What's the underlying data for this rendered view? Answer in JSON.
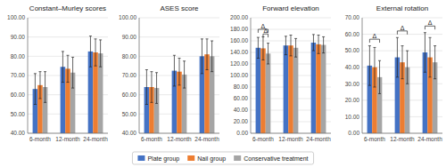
{
  "chart_data": [
    {
      "type": "bar",
      "title": "Constant–Murley scores",
      "categories": [
        "6-month",
        "12-month",
        "24-month"
      ],
      "series": [
        {
          "name": "Plate group",
          "color": "#4472C4",
          "values": [
            63,
            74.5,
            82.5
          ],
          "errors": [
            8,
            8,
            8
          ]
        },
        {
          "name": "Nail group",
          "color": "#ED7D31",
          "values": [
            65,
            73.5,
            82.0
          ],
          "errors": [
            7,
            7,
            7
          ]
        },
        {
          "name": "Conservative treatment",
          "color": "#A5A5A5",
          "values": [
            64,
            71.5,
            81.5
          ],
          "errors": [
            8,
            8,
            7
          ]
        }
      ],
      "ylim": [
        40,
        100
      ],
      "yticks": [
        {
          "value": 40,
          "label": "40.00"
        },
        {
          "value": 50,
          "label": "50.00"
        },
        {
          "value": 60,
          "label": "60.00"
        },
        {
          "value": 70,
          "label": "70.00"
        },
        {
          "value": 80,
          "label": "80.00"
        },
        {
          "value": 90,
          "label": "90.00"
        },
        {
          "value": 100,
          "label": "100.00"
        }
      ],
      "grid": true,
      "legend": "bottom",
      "annotations": []
    },
    {
      "type": "bar",
      "title": "ASES score",
      "categories": [
        "6-month",
        "12-month",
        "24-month"
      ],
      "series": [
        {
          "name": "Plate group",
          "color": "#4472C4",
          "values": [
            64,
            72.5,
            80.0
          ],
          "errors": [
            9,
            8,
            9
          ]
        },
        {
          "name": "Nail group",
          "color": "#ED7D31",
          "values": [
            64,
            72.0,
            81.0
          ],
          "errors": [
            8,
            7,
            8
          ]
        },
        {
          "name": "Conservative treatment",
          "color": "#A5A5A5",
          "values": [
            63.5,
            70.5,
            80.0
          ],
          "errors": [
            8,
            7,
            8
          ]
        }
      ],
      "ylim": [
        40,
        100
      ],
      "yticks": [
        {
          "value": 40,
          "label": "40.00"
        },
        {
          "value": 50,
          "label": "50.00"
        },
        {
          "value": 60,
          "label": "60.00"
        },
        {
          "value": 70,
          "label": "70.00"
        },
        {
          "value": 80,
          "label": "80.00"
        },
        {
          "value": 90,
          "label": "90.00"
        },
        {
          "value": 100,
          "label": "100.00"
        }
      ],
      "grid": true,
      "annotations": []
    },
    {
      "type": "bar",
      "title": "Forward elevation",
      "categories": [
        "6-month",
        "12-month",
        "24-month"
      ],
      "series": [
        {
          "name": "Plate group",
          "color": "#4472C4",
          "values": [
            148,
            152,
            157
          ],
          "errors": [
            18,
            16,
            14
          ]
        },
        {
          "name": "Nail group",
          "color": "#ED7D31",
          "values": [
            147,
            152,
            154
          ],
          "errors": [
            20,
            18,
            16
          ]
        },
        {
          "name": "Conservative treatment",
          "color": "#A5A5A5",
          "values": [
            138,
            148,
            153
          ],
          "errors": [
            18,
            16,
            14
          ]
        }
      ],
      "ylim": [
        0,
        200
      ],
      "yticks": [
        {
          "value": 0,
          "label": "0.00"
        },
        {
          "value": 20,
          "label": "20.00"
        },
        {
          "value": 40,
          "label": "40.00"
        },
        {
          "value": 60,
          "label": "60.00"
        },
        {
          "value": 80,
          "label": "80.00"
        },
        {
          "value": 100,
          "label": "100.00"
        },
        {
          "value": 120,
          "label": "120.00"
        },
        {
          "value": 140,
          "label": "140.00"
        },
        {
          "value": 160,
          "label": "160.00"
        },
        {
          "value": 180,
          "label": "180.00"
        },
        {
          "value": 200,
          "label": "200.00"
        }
      ],
      "grid": true,
      "annotations": [
        {
          "label": "Δ",
          "category": 0,
          "series": [
            0,
            2
          ],
          "value": 180
        },
        {
          "label": "Δ",
          "category": 0,
          "series": [
            1,
            2
          ],
          "value": 172
        }
      ]
    },
    {
      "type": "bar",
      "title": "External rotation",
      "categories": [
        "6-month",
        "12-month",
        "24-month"
      ],
      "series": [
        {
          "name": "Plate group",
          "color": "#4472C4",
          "values": [
            41,
            46,
            49
          ],
          "errors": [
            12,
            12,
            12
          ]
        },
        {
          "name": "Nail group",
          "color": "#ED7D31",
          "values": [
            40,
            43,
            46
          ],
          "errors": [
            12,
            10,
            12
          ]
        },
        {
          "name": "Conservative treatment",
          "color": "#A5A5A5",
          "values": [
            34,
            40,
            43
          ],
          "errors": [
            10,
            10,
            10
          ]
        }
      ],
      "ylim": [
        0,
        70
      ],
      "yticks": [
        {
          "value": 0,
          "label": "0.00"
        },
        {
          "value": 10,
          "label": "10.00"
        },
        {
          "value": 20,
          "label": "20.00"
        },
        {
          "value": 30,
          "label": "30.00"
        },
        {
          "value": 40,
          "label": "40.00"
        },
        {
          "value": 50,
          "label": "50.00"
        },
        {
          "value": 60,
          "label": "60.00"
        },
        {
          "value": 70,
          "label": "70.00"
        }
      ],
      "grid": true,
      "annotations": [
        {
          "label": "Δ",
          "category": 0,
          "series": [
            0,
            2
          ],
          "value": 57
        },
        {
          "label": "Δ",
          "category": 1,
          "series": [
            0,
            2
          ],
          "value": 62
        },
        {
          "label": "Δ",
          "category": 2,
          "series": [
            0,
            2
          ],
          "value": 65
        }
      ]
    }
  ]
}
